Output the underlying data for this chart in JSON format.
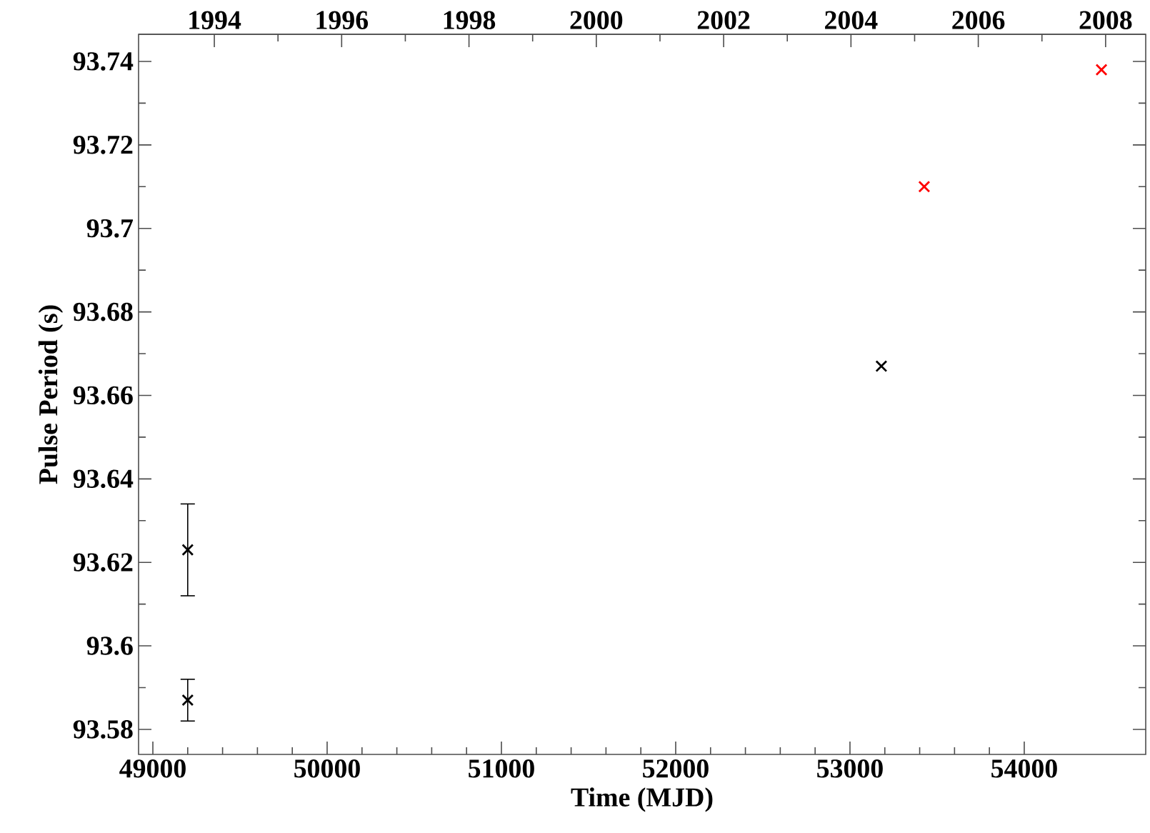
{
  "chart_data": {
    "type": "scatter",
    "xlabel": "Time (MJD)",
    "ylabel": "Pulse Period (s)",
    "marker": "cross",
    "xlim": [
      48918,
      54697
    ],
    "xticks": [
      49000,
      50000,
      51000,
      52000,
      53000,
      54000
    ],
    "x2lim": [
      1992.81,
      2008.63
    ],
    "x2ticks": [
      1994,
      1996,
      1998,
      2000,
      2002,
      2004,
      2006,
      2008
    ],
    "ylim": [
      93.574,
      93.7465
    ],
    "yticks": [
      93.58,
      93.6,
      93.62,
      93.64,
      93.66,
      93.68,
      93.7,
      93.72,
      93.74
    ],
    "series": [
      {
        "color": "#000000",
        "x": [
          49200,
          49200,
          53180
        ],
        "values": [
          93.587,
          93.623,
          93.667
        ],
        "errors": [
          [
            93.582,
            93.592
          ],
          [
            93.612,
            93.634
          ],
          null
        ]
      },
      {
        "color": "#ff0000",
        "x": [
          53426,
          54443
        ],
        "values": [
          93.71,
          93.738
        ]
      }
    ]
  }
}
